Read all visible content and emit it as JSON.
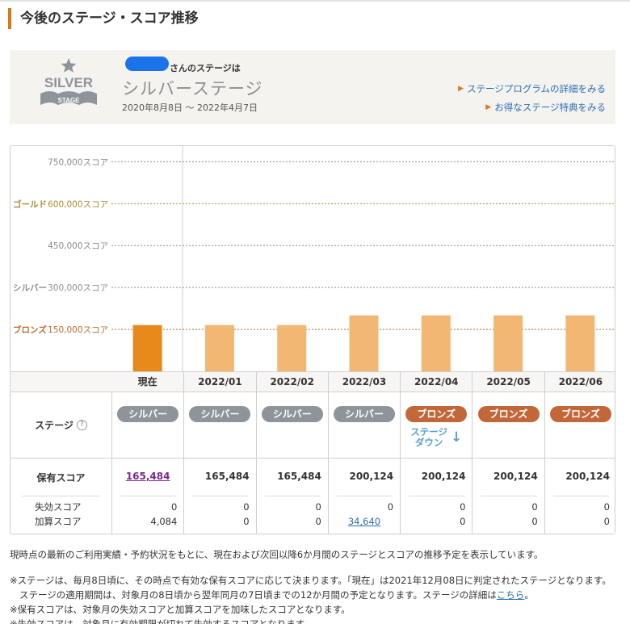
{
  "section_title": "今後のステージ・スコア推移",
  "current_stage": {
    "user_suffix": "さんのステージは",
    "stage_name": "シルバーステージ",
    "period": "2020年8月8日 ～ 2022年4月7日",
    "badge_text": "SILVER",
    "badge_sub": "STAGE"
  },
  "links": {
    "program_detail": "ステージプログラムの詳細をみる",
    "benefits": "お得なステージ特典をみる"
  },
  "chart_data": {
    "type": "bar",
    "title": "",
    "xlabel": "",
    "ylabel": "",
    "ylim": [
      0,
      800000
    ],
    "grid": true,
    "categories": [
      "現在",
      "2022/01",
      "2022/02",
      "2022/03",
      "2022/04",
      "2022/05",
      "2022/06"
    ],
    "values": [
      165484,
      165484,
      165484,
      200124,
      200124,
      200124,
      200124
    ],
    "y_ticks": [
      {
        "value": 750000,
        "label": "750,000スコア",
        "stage": ""
      },
      {
        "value": 600000,
        "label": "600,000スコア",
        "stage": "ゴールド"
      },
      {
        "value": 450000,
        "label": "450,000スコア",
        "stage": ""
      },
      {
        "value": 300000,
        "label": "300,000スコア",
        "stage": "シルバー"
      },
      {
        "value": 150000,
        "label": "150,000スコア",
        "stage": "ブロンズ"
      }
    ],
    "colors": {
      "current": "#e8891c",
      "future": "#f2b873",
      "gold": "#b08a2e",
      "silver": "#8e8e8e",
      "bronze": "#c06a30",
      "tick": "#8a8a8a"
    }
  },
  "table": {
    "row_labels": {
      "stage": "ステージ",
      "help": "?",
      "score": "保有スコア",
      "expired": "失効スコア",
      "added": "加算スコア"
    },
    "columns": [
      {
        "stage": "シルバー",
        "stage_type": "silver",
        "note": "",
        "score": "165,484",
        "expired": "0",
        "added": "4,084"
      },
      {
        "stage": "シルバー",
        "stage_type": "silver",
        "note": "",
        "score": "165,484",
        "expired": "0",
        "added": "0"
      },
      {
        "stage": "シルバー",
        "stage_type": "silver",
        "note": "",
        "score": "165,484",
        "expired": "0",
        "added": "0"
      },
      {
        "stage": "シルバー",
        "stage_type": "silver",
        "note": "",
        "score": "200,124",
        "expired": "0",
        "added": "34,640"
      },
      {
        "stage": "ブロンズ",
        "stage_type": "bronze",
        "note": "ステージ\nダウン",
        "score": "200,124",
        "expired": "0",
        "added": "0"
      },
      {
        "stage": "ブロンズ",
        "stage_type": "bronze",
        "note": "",
        "score": "200,124",
        "expired": "0",
        "added": "0"
      },
      {
        "stage": "ブロンズ",
        "stage_type": "bronze",
        "note": "",
        "score": "200,124",
        "expired": "0",
        "added": "0"
      }
    ]
  },
  "notes": {
    "intro": "現時点の最新のご利用実績・予約状況をもとに、現在および次回以降6か月間のステージとスコアの推移予定を表示しています。",
    "note1_a": "※ステージは、毎月8日頃に、その時点で有効な保有スコアに応じて決まります。「現在」は2021年12月08日に判定されたステージとなります。ステージの適用期間は、対象月の8日頃から翌年同月の7日頃までの12か月間の予定となります。ステージの詳細は",
    "note1_link": "こちら",
    "note1_end": "。",
    "note2": "※保有スコアは、対象月の失効スコアと加算スコアを加味したスコアとなります。",
    "note3": "※失効スコアは、対象月に有効期限が切れて失効するスコアとなります。"
  }
}
